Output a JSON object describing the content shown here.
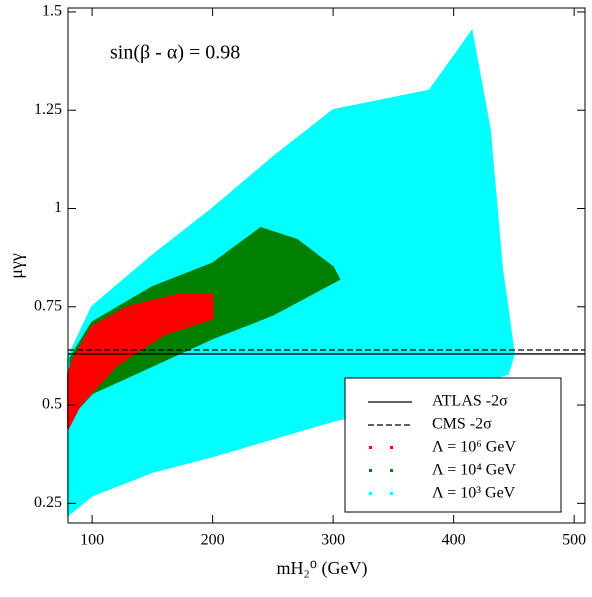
{
  "chart_data": {
    "type": "scatter",
    "annotation": "sin(β - α) = 0.98",
    "x_label": "mH₂⁰ (GeV)",
    "y_label": "μγγ",
    "xlim": [
      80,
      509
    ],
    "ylim": [
      0.2,
      1.51
    ],
    "xticks": [
      100,
      200,
      300,
      400,
      500
    ],
    "yticks": [
      0.25,
      0.5,
      0.75,
      1,
      1.25,
      1.5
    ],
    "reference_lines": [
      {
        "name": "ATLAS -2σ",
        "value": 0.63,
        "style": "solid",
        "color": "#000000"
      },
      {
        "name": "CMS -2σ",
        "value": 0.64,
        "style": "dashed",
        "color": "#000000"
      }
    ],
    "series": [
      {
        "name": "Λ  = 10³ GeV",
        "color": "#00ffff",
        "x": [
          80,
          100,
          150,
          200,
          300,
          400,
          445,
          450,
          440,
          430,
          415,
          380,
          300,
          250,
          200,
          150,
          100,
          80
        ],
        "values": [
          0.22,
          0.27,
          0.33,
          0.37,
          0.46,
          0.53,
          0.58,
          0.63,
          0.85,
          1.2,
          1.45,
          1.3,
          1.25,
          1.13,
          1.0,
          0.88,
          0.75,
          0.62
        ]
      },
      {
        "name": "Λ  = 10⁴ GeV",
        "color": "#008000",
        "x": [
          82,
          100,
          150,
          200,
          250,
          305,
          300,
          270,
          240,
          200,
          150,
          100,
          82
        ],
        "values": [
          0.47,
          0.53,
          0.6,
          0.67,
          0.73,
          0.82,
          0.85,
          0.92,
          0.95,
          0.86,
          0.8,
          0.71,
          0.62
        ]
      },
      {
        "name": "Λ  = 10⁶ GeV",
        "color": "#ff0000",
        "x": [
          80,
          90,
          120,
          160,
          200,
          200,
          170,
          130,
          100,
          85,
          80
        ],
        "values": [
          0.44,
          0.5,
          0.6,
          0.68,
          0.72,
          0.78,
          0.78,
          0.75,
          0.7,
          0.62,
          0.58
        ]
      }
    ]
  }
}
